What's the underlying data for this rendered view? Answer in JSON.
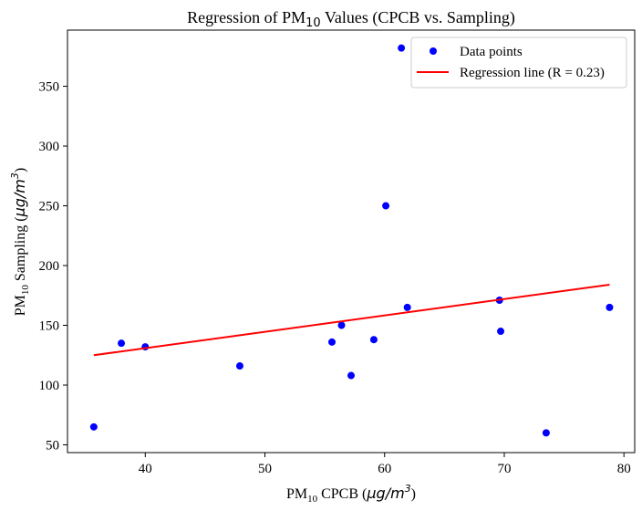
{
  "chart_data": {
    "type": "scatter",
    "title_parts": {
      "pre": "Regression of PM",
      "sub": "10",
      "post": " Values (CPCB vs. Sampling)"
    },
    "xlabel_parts": {
      "pre": "PM",
      "sub": "10",
      "mid": " CPCB (",
      "unit": "μg/m",
      "sup": "3",
      "post": ")"
    },
    "ylabel_parts": {
      "pre": "PM",
      "sub": "10",
      "mid": " Sampling (",
      "unit": "μg/m",
      "sup": "3",
      "post": ")"
    },
    "xlim": [
      33.5,
      80.9
    ],
    "ylim": [
      43.5,
      397
    ],
    "xticks": [
      40,
      50,
      60,
      70,
      80
    ],
    "yticks": [
      50,
      100,
      150,
      200,
      250,
      300,
      350
    ],
    "series": [
      {
        "name": "Data points",
        "kind": "scatter",
        "color": "#0000ff",
        "points": [
          [
            35.7,
            65
          ],
          [
            38.0,
            135
          ],
          [
            40.0,
            132
          ],
          [
            47.9,
            116
          ],
          [
            55.6,
            136
          ],
          [
            56.4,
            150
          ],
          [
            57.2,
            108
          ],
          [
            59.1,
            138
          ],
          [
            60.1,
            250
          ],
          [
            61.4,
            382
          ],
          [
            61.9,
            165
          ],
          [
            69.6,
            171
          ],
          [
            69.7,
            145
          ],
          [
            73.5,
            60
          ],
          [
            78.8,
            165
          ]
        ]
      },
      {
        "name": "Regression line (R = 0.23)",
        "kind": "line",
        "color": "#ff0000",
        "points": [
          [
            35.7,
            125
          ],
          [
            78.8,
            184
          ]
        ]
      }
    ],
    "legend_position": "top-right",
    "grid": false
  }
}
